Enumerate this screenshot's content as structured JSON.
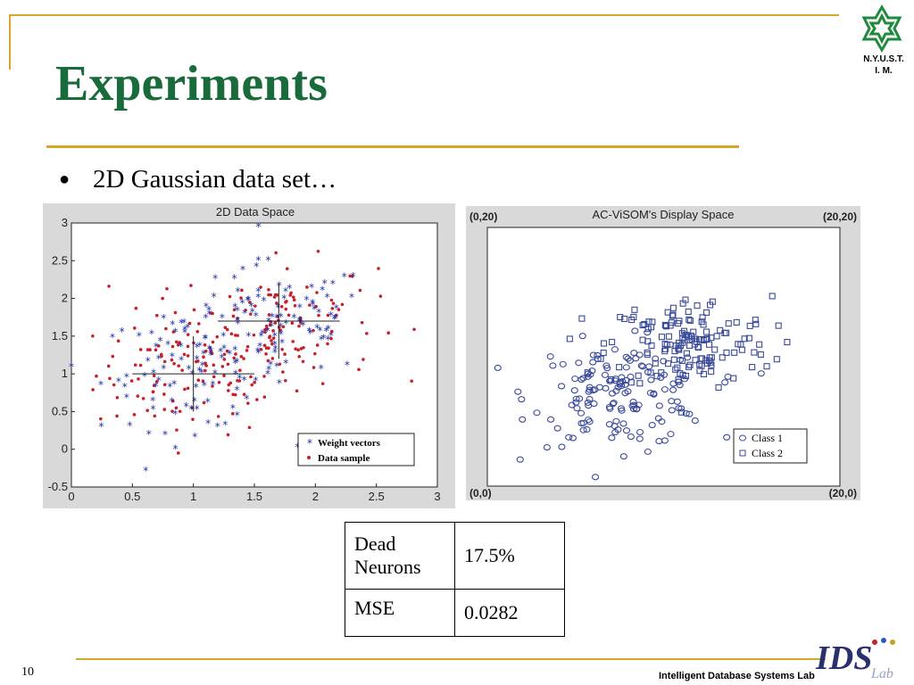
{
  "slide": {
    "title": "Experiments",
    "logo_text_line1": "N.Y.U.S.T.",
    "logo_text_line2": "I. M.",
    "bullet": "2D Gaussian data set…",
    "page_number": "10",
    "footer_lab": "Intelligent Database Systems Lab",
    "ids_logo_text": "IDS",
    "ids_logo_subtext": "Lab"
  },
  "colors": {
    "title": "#1a6b3c",
    "rule": "#d4a82a",
    "weight": "#1f2fa8",
    "data": "#c8202a"
  },
  "chart_data": [
    {
      "type": "scatter",
      "title": "2D Data Space",
      "xlim": [
        0,
        3
      ],
      "ylim": [
        -0.5,
        3
      ],
      "x_ticks": [
        "0",
        "0.5",
        "1",
        "1.5",
        "2",
        "2.5",
        "3"
      ],
      "y_ticks": [
        "-0.5",
        "0",
        "0.5",
        "1",
        "1.5",
        "2",
        "2.5",
        "3"
      ],
      "legend": {
        "placement": "bottom-right",
        "entries": [
          "Weight vectors",
          "Data sample"
        ]
      },
      "series": [
        {
          "name": "Weight vectors",
          "marker": "asterisk",
          "clusters": [
            {
              "center": [
                1.0,
                1.0
              ],
              "spread": 0.38,
              "count": 90
            },
            {
              "center": [
                1.7,
                1.7
              ],
              "spread": 0.38,
              "count": 90
            }
          ]
        },
        {
          "name": "Data sample",
          "marker": "dot",
          "clusters": [
            {
              "center": [
                1.0,
                1.0
              ],
              "spread": 0.4,
              "count": 120
            },
            {
              "center": [
                1.7,
                1.7
              ],
              "spread": 0.4,
              "count": 120
            }
          ]
        }
      ]
    },
    {
      "type": "scatter",
      "title": "AC-ViSOM's Display Space",
      "corners": {
        "top_left": "(0,20)",
        "top_right": "(20,20)",
        "bottom_left": "(0,0)",
        "bottom_right": "(20,0)"
      },
      "xlim": [
        0,
        20
      ],
      "ylim": [
        0,
        20
      ],
      "legend": {
        "placement": "bottom-right",
        "entries": [
          "Class 1",
          "Class 2"
        ]
      },
      "series": [
        {
          "name": "Class 1",
          "marker": "circle",
          "cluster": {
            "center": [
              7.5,
              7.0
            ],
            "spread": 2.6,
            "count": 150
          }
        },
        {
          "name": "Class 2",
          "marker": "square",
          "cluster": {
            "center": [
              11.5,
              11.0
            ],
            "spread": 2.4,
            "count": 150
          }
        }
      ]
    }
  ],
  "results_table": {
    "rows": [
      {
        "label_line1": "Dead",
        "label_line2": "Neurons",
        "value": "17.5%"
      },
      {
        "label_line1": "MSE",
        "label_line2": "",
        "value": "0.0282"
      }
    ]
  }
}
